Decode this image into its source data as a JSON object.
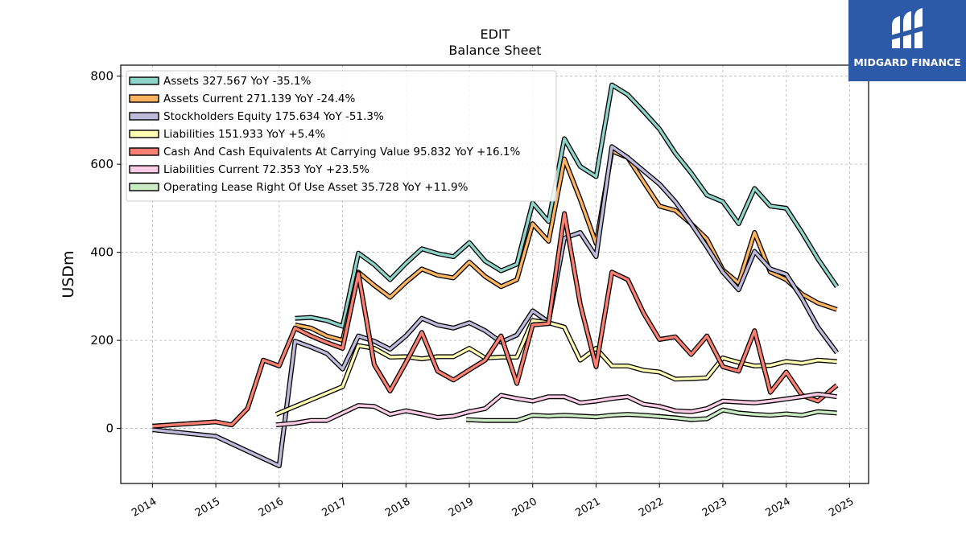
{
  "chart_data": {
    "type": "line",
    "title": "EDIT",
    "subtitle": "Balance  Sheet",
    "ylabel": "USDm",
    "xlabel": "",
    "xlim": [
      2013.5,
      2025.3
    ],
    "ylim": [
      -125,
      825
    ],
    "x_ticks": [
      "2014",
      "2015",
      "2016",
      "2017",
      "2018",
      "2019",
      "2020",
      "2021",
      "2022",
      "2023",
      "2024",
      "2025"
    ],
    "y_ticks": [
      "0",
      "200",
      "400",
      "600",
      "800"
    ],
    "grid": true,
    "legend_position": "top-left",
    "series": [
      {
        "name": "Assets  327.567 YoY -35.1%",
        "color": "#8dd3c7",
        "points": [
          [
            2016.25,
            250
          ],
          [
            2016.5,
            252
          ],
          [
            2016.75,
            245
          ],
          [
            2017.0,
            232
          ],
          [
            2017.25,
            398
          ],
          [
            2017.5,
            372
          ],
          [
            2017.75,
            338
          ],
          [
            2018.0,
            375
          ],
          [
            2018.25,
            408
          ],
          [
            2018.5,
            397
          ],
          [
            2018.75,
            390
          ],
          [
            2019.0,
            422
          ],
          [
            2019.25,
            380
          ],
          [
            2019.5,
            358
          ],
          [
            2019.75,
            373
          ],
          [
            2020.0,
            512
          ],
          [
            2020.25,
            470
          ],
          [
            2020.5,
            658
          ],
          [
            2020.75,
            595
          ],
          [
            2021.0,
            572
          ],
          [
            2021.25,
            780
          ],
          [
            2021.5,
            758
          ],
          [
            2021.75,
            720
          ],
          [
            2022.0,
            680
          ],
          [
            2022.25,
            625
          ],
          [
            2022.5,
            580
          ],
          [
            2022.75,
            530
          ],
          [
            2023.0,
            515
          ],
          [
            2023.25,
            465
          ],
          [
            2023.5,
            545
          ],
          [
            2023.75,
            505
          ],
          [
            2024.0,
            500
          ],
          [
            2024.25,
            445
          ],
          [
            2024.5,
            385
          ],
          [
            2024.8,
            322
          ]
        ]
      },
      {
        "name": "Assets Current  271.139 YoY -24.4%",
        "color": "#fdb462",
        "points": [
          [
            2016.25,
            235
          ],
          [
            2016.5,
            228
          ],
          [
            2016.75,
            210
          ],
          [
            2017.0,
            200
          ],
          [
            2017.25,
            355
          ],
          [
            2017.5,
            325
          ],
          [
            2017.75,
            298
          ],
          [
            2018.0,
            332
          ],
          [
            2018.25,
            362
          ],
          [
            2018.5,
            348
          ],
          [
            2018.75,
            342
          ],
          [
            2019.0,
            378
          ],
          [
            2019.25,
            345
          ],
          [
            2019.5,
            322
          ],
          [
            2019.75,
            338
          ],
          [
            2020.0,
            465
          ],
          [
            2020.25,
            425
          ],
          [
            2020.5,
            612
          ],
          [
            2020.75,
            520
          ],
          [
            2021.0,
            420
          ],
          [
            2021.25,
            630
          ],
          [
            2021.5,
            615
          ],
          [
            2021.75,
            560
          ],
          [
            2022.0,
            505
          ],
          [
            2022.25,
            495
          ],
          [
            2022.5,
            465
          ],
          [
            2022.75,
            430
          ],
          [
            2023.0,
            360
          ],
          [
            2023.25,
            330
          ],
          [
            2023.5,
            445
          ],
          [
            2023.75,
            355
          ],
          [
            2024.0,
            338
          ],
          [
            2024.25,
            305
          ],
          [
            2024.5,
            285
          ],
          [
            2024.8,
            270
          ]
        ]
      },
      {
        "name": "Stockholders Equity  175.634 YoY -51.3%",
        "color": "#bebada",
        "points": [
          [
            2014.0,
            -3
          ],
          [
            2015.0,
            -18
          ],
          [
            2016.0,
            -85
          ],
          [
            2016.25,
            198
          ],
          [
            2016.5,
            185
          ],
          [
            2016.75,
            170
          ],
          [
            2017.0,
            135
          ],
          [
            2017.25,
            210
          ],
          [
            2017.5,
            198
          ],
          [
            2017.75,
            180
          ],
          [
            2018.0,
            210
          ],
          [
            2018.25,
            250
          ],
          [
            2018.5,
            235
          ],
          [
            2018.75,
            228
          ],
          [
            2019.0,
            240
          ],
          [
            2019.25,
            222
          ],
          [
            2019.5,
            196
          ],
          [
            2019.75,
            212
          ],
          [
            2020.0,
            267
          ],
          [
            2020.25,
            242
          ],
          [
            2020.5,
            432
          ],
          [
            2020.75,
            445
          ],
          [
            2021.0,
            390
          ],
          [
            2021.25,
            640
          ],
          [
            2021.5,
            615
          ],
          [
            2021.75,
            585
          ],
          [
            2022.0,
            555
          ],
          [
            2022.25,
            515
          ],
          [
            2022.5,
            465
          ],
          [
            2022.75,
            412
          ],
          [
            2023.0,
            355
          ],
          [
            2023.25,
            315
          ],
          [
            2023.5,
            402
          ],
          [
            2023.75,
            362
          ],
          [
            2024.0,
            350
          ],
          [
            2024.25,
            295
          ],
          [
            2024.5,
            230
          ],
          [
            2024.8,
            172
          ]
        ]
      },
      {
        "name": "Liabilities  151.933 YoY +5.4%",
        "color": "#ffffb3",
        "points": [
          [
            2015.95,
            32
          ],
          [
            2016.25,
            50
          ],
          [
            2016.5,
            65
          ],
          [
            2016.75,
            80
          ],
          [
            2017.0,
            95
          ],
          [
            2017.25,
            188
          ],
          [
            2017.5,
            182
          ],
          [
            2017.75,
            162
          ],
          [
            2018.0,
            163
          ],
          [
            2018.25,
            158
          ],
          [
            2018.5,
            163
          ],
          [
            2018.75,
            163
          ],
          [
            2019.0,
            182
          ],
          [
            2019.25,
            160
          ],
          [
            2019.5,
            162
          ],
          [
            2019.75,
            162
          ],
          [
            2020.0,
            245
          ],
          [
            2020.25,
            240
          ],
          [
            2020.5,
            230
          ],
          [
            2020.75,
            155
          ],
          [
            2021.0,
            182
          ],
          [
            2021.25,
            142
          ],
          [
            2021.5,
            142
          ],
          [
            2021.75,
            132
          ],
          [
            2022.0,
            128
          ],
          [
            2022.25,
            112
          ],
          [
            2022.5,
            113
          ],
          [
            2022.75,
            115
          ],
          [
            2023.0,
            160
          ],
          [
            2023.25,
            150
          ],
          [
            2023.5,
            142
          ],
          [
            2023.75,
            143
          ],
          [
            2024.0,
            152
          ],
          [
            2024.25,
            148
          ],
          [
            2024.5,
            155
          ],
          [
            2024.8,
            152
          ]
        ]
      },
      {
        "name": "Cash And Cash Equivalents At Carrying Value  95.832 YoY +16.1%",
        "color": "#fb8072",
        "points": [
          [
            2014.0,
            5
          ],
          [
            2015.0,
            15
          ],
          [
            2015.25,
            8
          ],
          [
            2015.5,
            45
          ],
          [
            2015.75,
            155
          ],
          [
            2016.0,
            142
          ],
          [
            2016.25,
            228
          ],
          [
            2016.5,
            210
          ],
          [
            2016.75,
            195
          ],
          [
            2017.0,
            182
          ],
          [
            2017.25,
            352
          ],
          [
            2017.5,
            145
          ],
          [
            2017.75,
            85
          ],
          [
            2018.0,
            150
          ],
          [
            2018.25,
            218
          ],
          [
            2018.5,
            130
          ],
          [
            2018.75,
            110
          ],
          [
            2019.0,
            133
          ],
          [
            2019.25,
            155
          ],
          [
            2019.5,
            210
          ],
          [
            2019.75,
            102
          ],
          [
            2020.0,
            235
          ],
          [
            2020.25,
            238
          ],
          [
            2020.5,
            488
          ],
          [
            2020.75,
            282
          ],
          [
            2021.0,
            140
          ],
          [
            2021.25,
            355
          ],
          [
            2021.5,
            338
          ],
          [
            2021.75,
            262
          ],
          [
            2022.0,
            202
          ],
          [
            2022.25,
            208
          ],
          [
            2022.5,
            168
          ],
          [
            2022.75,
            210
          ],
          [
            2023.0,
            140
          ],
          [
            2023.25,
            130
          ],
          [
            2023.5,
            222
          ],
          [
            2023.75,
            82
          ],
          [
            2024.0,
            128
          ],
          [
            2024.25,
            75
          ],
          [
            2024.5,
            62
          ],
          [
            2024.8,
            98
          ]
        ]
      },
      {
        "name": "Liabilities Current  72.353 YoY +23.5%",
        "color": "#fccde5",
        "points": [
          [
            2015.95,
            8
          ],
          [
            2016.25,
            12
          ],
          [
            2016.5,
            18
          ],
          [
            2016.75,
            18
          ],
          [
            2017.0,
            35
          ],
          [
            2017.25,
            52
          ],
          [
            2017.5,
            50
          ],
          [
            2017.75,
            32
          ],
          [
            2018.0,
            40
          ],
          [
            2018.25,
            33
          ],
          [
            2018.5,
            25
          ],
          [
            2018.75,
            28
          ],
          [
            2019.0,
            38
          ],
          [
            2019.25,
            45
          ],
          [
            2019.5,
            75
          ],
          [
            2019.75,
            68
          ],
          [
            2020.0,
            62
          ],
          [
            2020.25,
            72
          ],
          [
            2020.5,
            72
          ],
          [
            2020.75,
            58
          ],
          [
            2021.0,
            62
          ],
          [
            2021.25,
            68
          ],
          [
            2021.5,
            72
          ],
          [
            2021.75,
            55
          ],
          [
            2022.0,
            50
          ],
          [
            2022.25,
            40
          ],
          [
            2022.5,
            38
          ],
          [
            2022.75,
            45
          ],
          [
            2023.0,
            62
          ],
          [
            2023.25,
            60
          ],
          [
            2023.5,
            58
          ],
          [
            2023.75,
            62
          ],
          [
            2024.0,
            67
          ],
          [
            2024.25,
            72
          ],
          [
            2024.5,
            78
          ],
          [
            2024.8,
            72
          ]
        ]
      },
      {
        "name": "Operating Lease Right Of Use Asset  35.728 YoY +11.9%",
        "color": "#ccebc5",
        "points": [
          [
            2018.95,
            20
          ],
          [
            2019.25,
            18
          ],
          [
            2019.5,
            18
          ],
          [
            2019.75,
            18
          ],
          [
            2020.0,
            30
          ],
          [
            2020.25,
            28
          ],
          [
            2020.5,
            30
          ],
          [
            2020.75,
            28
          ],
          [
            2021.0,
            26
          ],
          [
            2021.25,
            30
          ],
          [
            2021.5,
            32
          ],
          [
            2021.75,
            30
          ],
          [
            2022.0,
            27
          ],
          [
            2022.25,
            24
          ],
          [
            2022.5,
            20
          ],
          [
            2022.75,
            22
          ],
          [
            2023.0,
            42
          ],
          [
            2023.25,
            35
          ],
          [
            2023.5,
            32
          ],
          [
            2023.75,
            30
          ],
          [
            2024.0,
            33
          ],
          [
            2024.25,
            30
          ],
          [
            2024.5,
            38
          ],
          [
            2024.8,
            35
          ]
        ]
      }
    ]
  },
  "logo": {
    "text": "MIDGARD FINANCE",
    "background": "#2d5aa8"
  }
}
